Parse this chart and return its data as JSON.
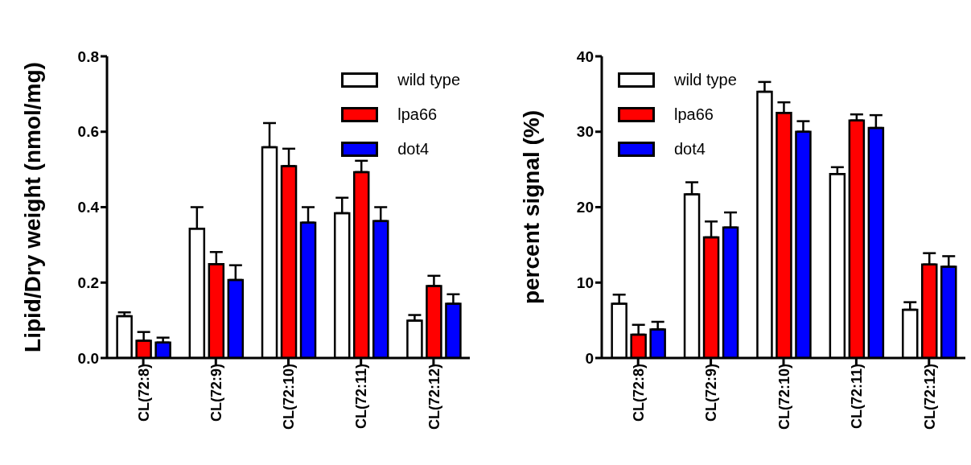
{
  "chart_data": [
    {
      "type": "bar",
      "ylabel": "Lipid/Dry weight (nmol/mg)",
      "categories": [
        "CL(72:8)",
        "CL(72:9)",
        "CL(72:10)",
        "CL(72:11)",
        "CL(72:12)"
      ],
      "ylim": [
        0,
        0.8
      ],
      "yticks": [
        {
          "value": 0,
          "label": "0.0"
        },
        0.2,
        0.4,
        0.6,
        0.8
      ],
      "legend": "top right",
      "series": [
        {
          "name": "wild type",
          "color": "#ffffff",
          "values": [
            0.111,
            0.343,
            0.559,
            0.384,
            0.099
          ],
          "errors": [
            [
              0.111,
              0.121
            ],
            [
              0.343,
              0.4
            ],
            [
              0.559,
              0.623
            ],
            [
              0.384,
              0.425
            ],
            [
              0.099,
              0.114
            ]
          ]
        },
        {
          "name": "lpa66",
          "color": "#ff0000",
          "values": [
            0.046,
            0.249,
            0.509,
            0.493,
            0.191
          ],
          "errors": [
            [
              0.046,
              0.069
            ],
            [
              0.249,
              0.281
            ],
            [
              0.509,
              0.555
            ],
            [
              0.493,
              0.523
            ],
            [
              0.191,
              0.218
            ]
          ]
        },
        {
          "name": "dot4",
          "color": "#0000ff",
          "values": [
            0.041,
            0.207,
            0.359,
            0.363,
            0.144
          ],
          "errors": [
            [
              0.041,
              0.054
            ],
            [
              0.207,
              0.246
            ],
            [
              0.359,
              0.4
            ],
            [
              0.363,
              0.4
            ],
            [
              0.144,
              0.169
            ]
          ]
        }
      ]
    },
    {
      "type": "bar",
      "ylabel": "percent signal (%)",
      "categories": [
        "CL(72:8)",
        "CL(72:9)",
        "CL(72:10)",
        "CL(72:11)",
        "CL(72:12)"
      ],
      "ylim": [
        0,
        40
      ],
      "yticks": [
        0,
        10,
        20,
        30,
        40
      ],
      "legend": "top left",
      "series": [
        {
          "name": "wild type",
          "color": "#ffffff",
          "values": [
            7.2,
            21.7,
            35.3,
            24.4,
            6.4
          ],
          "errors": [
            [
              7.2,
              8.4
            ],
            [
              21.7,
              23.3
            ],
            [
              35.3,
              36.6
            ],
            [
              24.4,
              25.3
            ],
            [
              6.4,
              7.4
            ]
          ]
        },
        {
          "name": "lpa66",
          "color": "#ff0000",
          "values": [
            3.1,
            16.0,
            32.5,
            31.5,
            12.4
          ],
          "errors": [
            [
              3.1,
              4.4
            ],
            [
              16.0,
              18.1
            ],
            [
              32.5,
              33.9
            ],
            [
              31.5,
              32.3
            ],
            [
              12.4,
              13.9
            ]
          ]
        },
        {
          "name": "dot4",
          "color": "#0000ff",
          "values": [
            3.8,
            17.3,
            30.0,
            30.5,
            12.1
          ],
          "errors": [
            [
              3.8,
              4.8
            ],
            [
              17.3,
              19.3
            ],
            [
              30.0,
              31.4
            ],
            [
              30.5,
              32.2
            ],
            [
              12.1,
              13.5
            ]
          ]
        }
      ]
    }
  ]
}
